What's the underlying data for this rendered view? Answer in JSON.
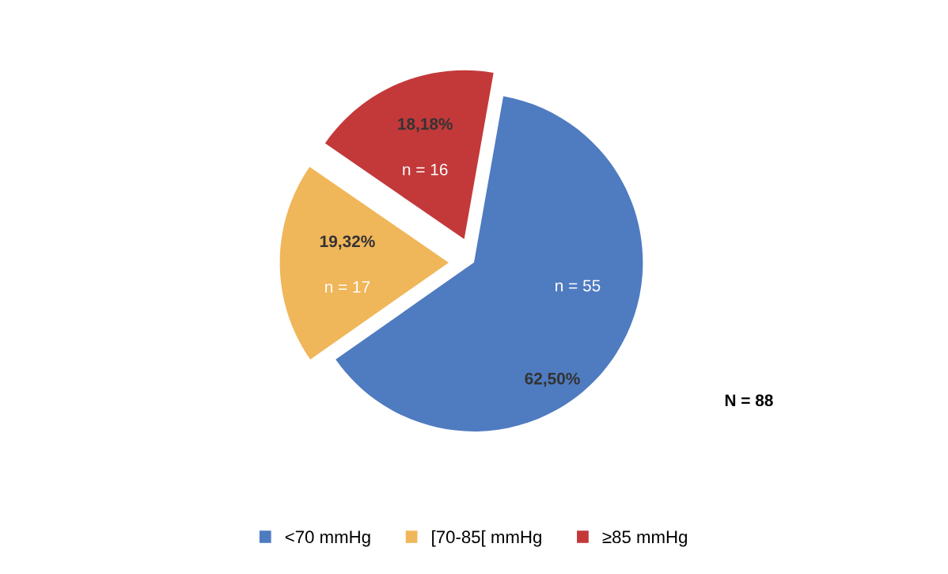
{
  "chart_data": {
    "type": "pie",
    "categories": [
      "<70 mmHg",
      "[70-85[ mmHg",
      "≥85 mmHg"
    ],
    "values": [
      62.5,
      19.32,
      18.18
    ],
    "value_labels": [
      "62,50%",
      "19,32%",
      "18,18%"
    ],
    "colors": [
      "#4f7bc0",
      "#f0b65a",
      "#c3393a"
    ],
    "annotations": [
      "n = 55",
      "n = 17",
      "n = 16",
      "N = 88"
    ],
    "legend": "bottom"
  }
}
